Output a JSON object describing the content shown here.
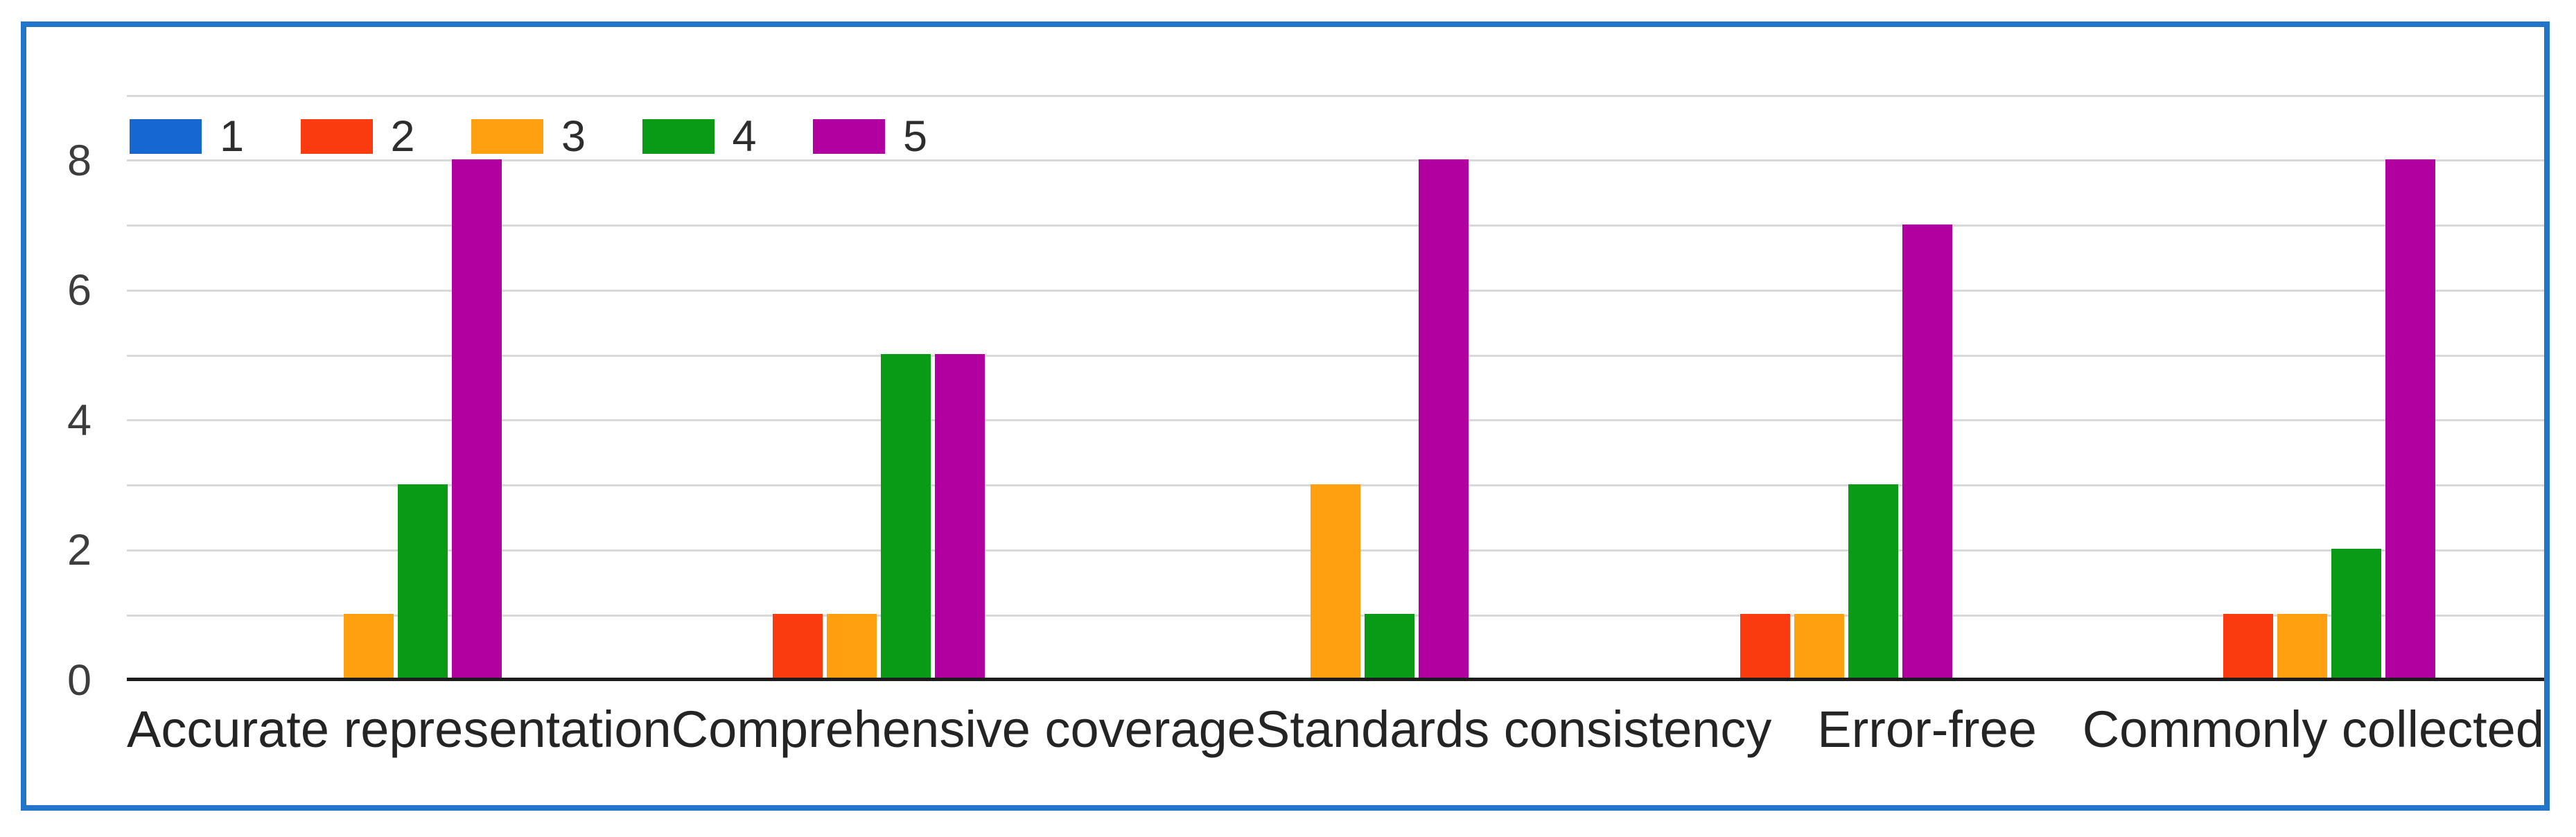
{
  "figure": {
    "border_color": "#2374cb",
    "background_color": "#ffffff"
  },
  "chart_data": {
    "type": "bar",
    "title": "",
    "xlabel": "",
    "ylabel": "",
    "categories": [
      "Accurate representation",
      "Comprehensive coverage",
      "Standards consistency",
      "Error-free",
      "Commonly collected"
    ],
    "series": [
      {
        "name": "1",
        "color": "#1667d1",
        "values": [
          0,
          0,
          0,
          0,
          0
        ]
      },
      {
        "name": "2",
        "color": "#fa3b10",
        "values": [
          0,
          1,
          0,
          1,
          1
        ]
      },
      {
        "name": "3",
        "color": "#ffa011",
        "values": [
          1,
          1,
          3,
          1,
          1
        ]
      },
      {
        "name": "4",
        "color": "#0a9b16",
        "values": [
          3,
          5,
          1,
          3,
          2
        ]
      },
      {
        "name": "5",
        "color": "#b1009f",
        "values": [
          8,
          5,
          8,
          7,
          8
        ]
      }
    ],
    "y_ticks": [
      0,
      2,
      4,
      6,
      8
    ],
    "ylim": [
      0,
      9
    ],
    "grid": "on",
    "gridline_step": 1,
    "gridline_color": "#d9d9d9",
    "axis_line_color": "#1c1c1c",
    "tick_label_color": "#3d3d3d",
    "category_label_color": "#242424",
    "legend_position": "top-left",
    "legend_labels": [
      "1",
      "2",
      "3",
      "4",
      "5"
    ]
  }
}
